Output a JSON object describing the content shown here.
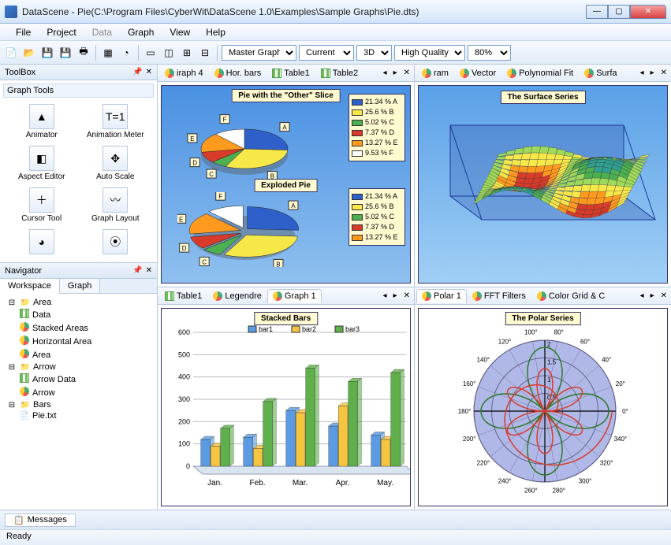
{
  "window": {
    "title": "DataScene - Pie(C:\\Program Files\\CyberWit\\DataScene 1.0\\Examples\\Sample Graphs\\Pie.dts)"
  },
  "menu": [
    "File",
    "Project",
    "Data",
    "Graph",
    "View",
    "Help"
  ],
  "toolbar": {
    "combo_master": "Master Graph",
    "combo_current": "Current",
    "combo_3d": "3D",
    "combo_quality": "High Quality",
    "combo_zoom": "80%"
  },
  "toolbox": {
    "title": "ToolBox",
    "subtitle": "Graph Tools",
    "tools": [
      {
        "label": "Animator",
        "glyph": "▲"
      },
      {
        "label": "Animation Meter",
        "glyph": "T=1"
      },
      {
        "label": "Aspect Editor",
        "glyph": "◧"
      },
      {
        "label": "Auto Scale",
        "glyph": "✥"
      },
      {
        "label": "Cursor Tool",
        "glyph": "＋"
      },
      {
        "label": "Graph Layout",
        "glyph": "〰"
      }
    ]
  },
  "navigator": {
    "title": "Navigator",
    "tabs": [
      "Workspace",
      "Graph"
    ],
    "tree": [
      {
        "label": "Area",
        "icon": "folder",
        "children": [
          {
            "label": "Data",
            "icon": "table"
          },
          {
            "label": "Stacked Areas",
            "icon": "chart"
          },
          {
            "label": "Horizontal Area",
            "icon": "chart"
          },
          {
            "label": "Area",
            "icon": "chart"
          }
        ]
      },
      {
        "label": "Arrow",
        "icon": "folder",
        "children": [
          {
            "label": "Arrow Data",
            "icon": "table"
          },
          {
            "label": "Arrow",
            "icon": "chart"
          }
        ]
      },
      {
        "label": "Bars",
        "icon": "folder",
        "children": [
          {
            "label": "Pie.txt",
            "icon": "file"
          }
        ]
      }
    ]
  },
  "panes": {
    "top_left": {
      "tabs": [
        {
          "l": "iraph 4",
          "i": "chart"
        },
        {
          "l": "Hor. bars",
          "i": "chart"
        },
        {
          "l": "Table1",
          "i": "table"
        },
        {
          "l": "Table2",
          "i": "table"
        }
      ],
      "title1": "Pie with the \"Other\" Slice",
      "title2": "Exploded Pie",
      "other_label": "Other",
      "pie_slices": [
        {
          "v": 21.34,
          "l": "A",
          "c": "#2f5fc9"
        },
        {
          "v": 25.6,
          "l": "B",
          "c": "#f7e84a"
        },
        {
          "v": 5.02,
          "l": "C",
          "c": "#4caf50"
        },
        {
          "v": 7.37,
          "l": "D",
          "c": "#d93b2b"
        },
        {
          "v": 13.27,
          "l": "E",
          "c": "#ff9a1f"
        },
        {
          "v": 9.53,
          "l": "F",
          "c": "#ffffff"
        }
      ],
      "legend1": [
        {
          "c": "#2f5fc9",
          "t": "21.34 % A"
        },
        {
          "c": "#f7e84a",
          "t": "25.6 % B"
        },
        {
          "c": "#4caf50",
          "t": "5.02 % C"
        },
        {
          "c": "#d93b2b",
          "t": "7.37 % D"
        },
        {
          "c": "#ff9a1f",
          "t": "13.27 % E"
        },
        {
          "c": "#ffffff",
          "t": "9.53 % F"
        }
      ],
      "legend2": [
        {
          "c": "#2f5fc9",
          "t": "21.34 % A"
        },
        {
          "c": "#f7e84a",
          "t": "25.6 % B"
        },
        {
          "c": "#4caf50",
          "t": "5.02 % C"
        },
        {
          "c": "#d93b2b",
          "t": "7.37 % D"
        },
        {
          "c": "#ff9a1f",
          "t": "13.27 % E"
        }
      ]
    },
    "top_right": {
      "tabs": [
        {
          "l": "ram",
          "i": "chart"
        },
        {
          "l": "Vector",
          "i": "chart"
        },
        {
          "l": "Polynomial Fit",
          "i": "chart"
        },
        {
          "l": "Surfa",
          "i": "chart"
        }
      ],
      "title": "The Surface Series",
      "surface_colors": [
        "#d93b2b",
        "#ff9a1f",
        "#f7e84a",
        "#9fd95a",
        "#4caf50",
        "#2f9f8f"
      ],
      "box_color": "#1a3a9a"
    },
    "bottom_left": {
      "tabs": [
        {
          "l": "Table1",
          "i": "table"
        },
        {
          "l": "Legendre",
          "i": "chart"
        },
        {
          "l": "Graph 1",
          "i": "chart",
          "active": true
        }
      ],
      "title": "Stacked Bars",
      "ylim": [
        0,
        600
      ],
      "ytick": 100,
      "categories": [
        "Jan.",
        "Feb.",
        "Mar.",
        "Apr.",
        "May."
      ],
      "series": [
        {
          "name": "bar1",
          "c": "#5a9be2",
          "v": [
            120,
            130,
            250,
            180,
            140
          ]
        },
        {
          "name": "bar2",
          "c": "#f5c542",
          "v": [
            90,
            80,
            240,
            270,
            120
          ]
        },
        {
          "name": "bar3",
          "c": "#5fb04a",
          "v": [
            170,
            290,
            440,
            380,
            420
          ]
        }
      ]
    },
    "bottom_right": {
      "tabs": [
        {
          "l": "Polar 1",
          "i": "chart",
          "active": true
        },
        {
          "l": "FFT Filters",
          "i": "chart"
        },
        {
          "l": "Color Grid & C",
          "i": "chart"
        }
      ],
      "title": "The Polar Series",
      "bg": "#b0b8e8",
      "rings": [
        0.5,
        1,
        1.5,
        2
      ],
      "angles": [
        0,
        20,
        40,
        60,
        80,
        100,
        120,
        140,
        160,
        180,
        200,
        220,
        240,
        260,
        280,
        300,
        320,
        340
      ],
      "curves": [
        {
          "c": "#d93b2b",
          "type": "spiral"
        },
        {
          "c": "#2a7a2a",
          "type": "rose4"
        },
        {
          "c": "#d93b2b",
          "type": "rose3"
        }
      ]
    }
  },
  "status": {
    "messages": "Messages",
    "ready": "Ready"
  }
}
